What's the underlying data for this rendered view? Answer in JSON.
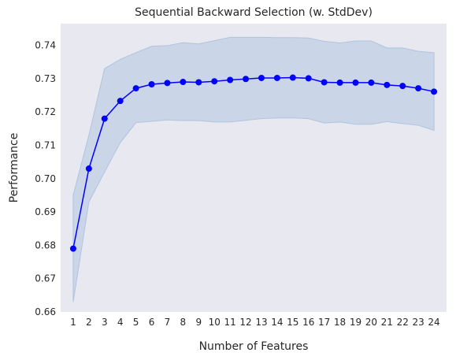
{
  "chart_data": {
    "type": "line",
    "title": "Sequential Backward Selection (w. StdDev)",
    "xlabel": "Number of Features",
    "ylabel": "Performance",
    "x": [
      1,
      2,
      3,
      4,
      5,
      6,
      7,
      8,
      9,
      10,
      11,
      12,
      13,
      14,
      15,
      16,
      17,
      18,
      19,
      20,
      21,
      22,
      23,
      24
    ],
    "series": [
      {
        "values": [
          0.679,
          0.703,
          0.718,
          0.7233,
          0.7271,
          0.7283,
          0.7287,
          0.729,
          0.7289,
          0.7292,
          0.7296,
          0.7299,
          0.7302,
          0.7302,
          0.7303,
          0.7301,
          0.7289,
          0.7288,
          0.7288,
          0.7288,
          0.7281,
          0.7278,
          0.7271,
          0.7261
        ],
        "upper": [
          0.695,
          0.713,
          0.733,
          0.7358,
          0.7378,
          0.7397,
          0.7399,
          0.7408,
          0.7404,
          0.7414,
          0.7424,
          0.7424,
          0.7424,
          0.7423,
          0.7423,
          0.7422,
          0.7412,
          0.7407,
          0.7413,
          0.7413,
          0.7392,
          0.7392,
          0.7382,
          0.7378
        ],
        "lower": [
          0.663,
          0.693,
          0.702,
          0.7108,
          0.7168,
          0.7172,
          0.7176,
          0.7174,
          0.7174,
          0.717,
          0.717,
          0.7175,
          0.718,
          0.7182,
          0.7182,
          0.718,
          0.7167,
          0.717,
          0.7163,
          0.7163,
          0.7171,
          0.7165,
          0.716,
          0.7145
        ],
        "color": "#0000ff"
      }
    ],
    "yticks": [
      "0.66",
      "0.67",
      "0.68",
      "0.69",
      "0.70",
      "0.71",
      "0.72",
      "0.73",
      "0.74"
    ],
    "ylim": [
      0.66,
      0.7465
    ],
    "xlim": [
      0.2,
      24.8
    ],
    "grid": false,
    "background": "#e8e8f1",
    "band_color": "#b0c4de"
  }
}
